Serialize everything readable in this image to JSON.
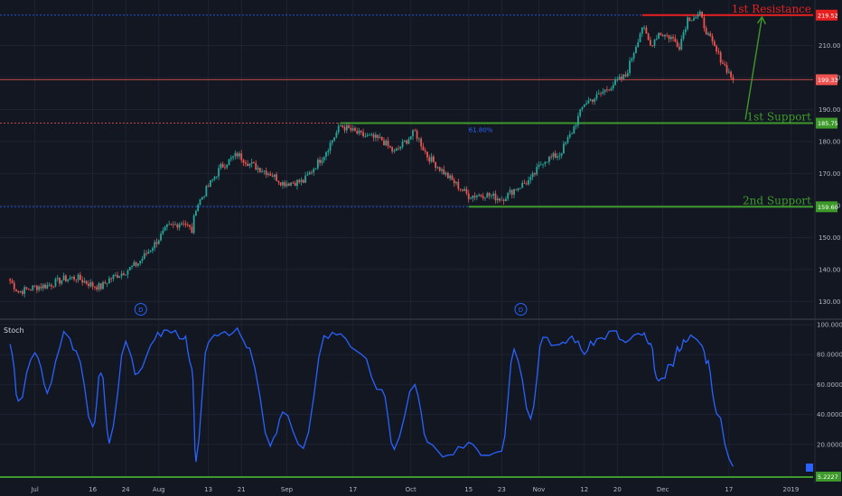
{
  "colors": {
    "background": "#131722",
    "grid": "#1f2330",
    "up": "#26a69a",
    "down": "#ef5350",
    "resistance": "#e82020",
    "support": "#3d9a2a",
    "arrow": "#3d9a2a",
    "stoch": "#2962ff",
    "price_tag": "#ef5350",
    "fib": "#2962ff"
  },
  "annotations": {
    "resistance_label": "1st Resistance",
    "support1_label": "1st Support",
    "support2_label": "2nd Support",
    "fib_label": "61.80%",
    "event_marker": "D"
  },
  "indicator": {
    "name": "Stoch"
  },
  "chart_data": [
    {
      "type": "candlestick",
      "series": [
        {
          "name": "",
          "values": [
            {
              "date": "2018-06-26",
              "close": 136.5
            },
            {
              "date": "2018-06-28",
              "close": 133.0
            },
            {
              "date": "2018-07-02",
              "close": 134.5
            },
            {
              "date": "2018-07-05",
              "close": 135.0
            },
            {
              "date": "2018-07-09",
              "close": 137.0
            },
            {
              "date": "2018-07-12",
              "close": 137.5
            },
            {
              "date": "2018-07-16",
              "close": 135.0
            },
            {
              "date": "2018-07-18",
              "close": 134.5
            },
            {
              "date": "2018-07-20",
              "close": 137.0
            },
            {
              "date": "2018-07-24",
              "close": 139.5
            },
            {
              "date": "2018-07-27",
              "close": 142.0
            },
            {
              "date": "2018-07-31",
              "close": 148.0
            },
            {
              "date": "2018-08-03",
              "close": 153.0
            },
            {
              "date": "2018-08-07",
              "close": 155.0
            },
            {
              "date": "2018-08-09",
              "close": 152.0
            },
            {
              "date": "2018-08-10",
              "close": 159.5
            },
            {
              "date": "2018-08-13",
              "close": 166.0
            },
            {
              "date": "2018-08-16",
              "close": 172.0
            },
            {
              "date": "2018-08-20",
              "close": 176.0
            },
            {
              "date": "2018-08-23",
              "close": 173.0
            },
            {
              "date": "2018-08-28",
              "close": 170.0
            },
            {
              "date": "2018-08-31",
              "close": 167.0
            },
            {
              "date": "2018-09-05",
              "close": 167.5
            },
            {
              "date": "2018-09-10",
              "close": 176.0
            },
            {
              "date": "2018-09-14",
              "close": 185.0
            },
            {
              "date": "2018-09-19",
              "close": 182.0
            },
            {
              "date": "2018-09-24",
              "close": 180.5
            },
            {
              "date": "2018-09-27",
              "close": 176.5
            },
            {
              "date": "2018-10-02",
              "close": 183.0
            },
            {
              "date": "2018-10-05",
              "close": 175.5
            },
            {
              "date": "2018-10-10",
              "close": 169.0
            },
            {
              "date": "2018-10-15",
              "close": 163.0
            },
            {
              "date": "2018-10-19",
              "close": 163.5
            },
            {
              "date": "2018-10-23",
              "close": 162.0
            },
            {
              "date": "2018-10-26",
              "close": 165.0
            },
            {
              "date": "2018-10-30",
              "close": 168.0
            },
            {
              "date": "2018-11-02",
              "close": 174.0
            },
            {
              "date": "2018-11-06",
              "close": 176.0
            },
            {
              "date": "2018-11-09",
              "close": 183.0
            },
            {
              "date": "2018-11-12",
              "close": 192.0
            },
            {
              "date": "2018-11-15",
              "close": 194.0
            },
            {
              "date": "2018-11-19",
              "close": 198.0
            },
            {
              "date": "2018-11-22",
              "close": 200.5
            },
            {
              "date": "2018-11-26",
              "close": 216.0
            },
            {
              "date": "2018-11-28",
              "close": 210.0
            },
            {
              "date": "2018-11-30",
              "close": 214.0
            },
            {
              "date": "2018-12-03",
              "close": 212.5
            },
            {
              "date": "2018-12-05",
              "close": 210.0
            },
            {
              "date": "2018-12-07",
              "close": 218.5
            },
            {
              "date": "2018-12-10",
              "close": 219.5
            },
            {
              "date": "2018-12-12",
              "close": 213.0
            },
            {
              "date": "2018-12-14",
              "close": 208.0
            },
            {
              "date": "2018-12-18",
              "close": 199.33
            }
          ]
        }
      ],
      "y_ticks": [
        "130.00",
        "140.00",
        "150.00",
        "160.00",
        "170.00",
        "180.00",
        "190.00",
        "200.00",
        "210.00"
      ],
      "x_ticks": [
        "Jul",
        "16",
        "24",
        "Aug",
        "13",
        "21",
        "Sep",
        "17",
        "Oct",
        "15",
        "23",
        "Nov",
        "12",
        "20",
        "Dec",
        "17",
        "2019"
      ],
      "price_tags": [
        {
          "label": "219.52",
          "value": 219.52
        },
        {
          "label": "199.33",
          "value": 199.33
        },
        {
          "label": "185.75",
          "value": 185.75
        },
        {
          "label": "159.60",
          "value": 159.6
        }
      ],
      "levels": [
        {
          "name": "1st Resistance",
          "value": 219.52
        },
        {
          "name": "1st Support",
          "value": 185.75
        },
        {
          "name": "2nd Support",
          "value": 159.6
        }
      ],
      "ylim": [
        125,
        222
      ]
    },
    {
      "type": "line",
      "series": [
        {
          "name": "Stoch",
          "values": [
            {
              "date": "2018-06-26",
              "value": 88
            },
            {
              "date": "2018-06-28",
              "value": 48
            },
            {
              "date": "2018-07-02",
              "value": 82
            },
            {
              "date": "2018-07-05",
              "value": 55
            },
            {
              "date": "2018-07-09",
              "value": 93
            },
            {
              "date": "2018-07-12",
              "value": 84
            },
            {
              "date": "2018-07-16",
              "value": 30
            },
            {
              "date": "2018-07-18",
              "value": 70
            },
            {
              "date": "2018-07-20",
              "value": 22
            },
            {
              "date": "2018-07-24",
              "value": 90
            },
            {
              "date": "2018-07-27",
              "value": 65
            },
            {
              "date": "2018-07-31",
              "value": 92
            },
            {
              "date": "2018-08-03",
              "value": 96
            },
            {
              "date": "2018-08-07",
              "value": 93
            },
            {
              "date": "2018-08-09",
              "value": 70
            },
            {
              "date": "2018-08-10",
              "value": 10
            },
            {
              "date": "2018-08-13",
              "value": 90
            },
            {
              "date": "2018-08-16",
              "value": 96
            },
            {
              "date": "2018-08-20",
              "value": 95
            },
            {
              "date": "2018-08-23",
              "value": 82
            },
            {
              "date": "2018-08-28",
              "value": 18
            },
            {
              "date": "2018-08-31",
              "value": 42
            },
            {
              "date": "2018-09-05",
              "value": 15
            },
            {
              "date": "2018-09-10",
              "value": 92
            },
            {
              "date": "2018-09-14",
              "value": 95
            },
            {
              "date": "2018-09-19",
              "value": 78
            },
            {
              "date": "2018-09-24",
              "value": 55
            },
            {
              "date": "2018-09-27",
              "value": 18
            },
            {
              "date": "2018-10-02",
              "value": 60
            },
            {
              "date": "2018-10-05",
              "value": 20
            },
            {
              "date": "2018-10-10",
              "value": 10
            },
            {
              "date": "2018-10-15",
              "value": 22
            },
            {
              "date": "2018-10-19",
              "value": 14
            },
            {
              "date": "2018-10-23",
              "value": 18
            },
            {
              "date": "2018-10-26",
              "value": 85
            },
            {
              "date": "2018-10-30",
              "value": 40
            },
            {
              "date": "2018-11-02",
              "value": 93
            },
            {
              "date": "2018-11-06",
              "value": 85
            },
            {
              "date": "2018-11-09",
              "value": 92
            },
            {
              "date": "2018-11-12",
              "value": 82
            },
            {
              "date": "2018-11-15",
              "value": 90
            },
            {
              "date": "2018-11-19",
              "value": 95
            },
            {
              "date": "2018-11-22",
              "value": 88
            },
            {
              "date": "2018-11-26",
              "value": 94
            },
            {
              "date": "2018-11-28",
              "value": 85
            },
            {
              "date": "2018-11-30",
              "value": 60
            },
            {
              "date": "2018-12-03",
              "value": 72
            },
            {
              "date": "2018-12-05",
              "value": 85
            },
            {
              "date": "2018-12-07",
              "value": 92
            },
            {
              "date": "2018-12-10",
              "value": 88
            },
            {
              "date": "2018-12-12",
              "value": 75
            },
            {
              "date": "2018-12-14",
              "value": 40
            },
            {
              "date": "2018-12-18",
              "value": 5.2227
            }
          ]
        }
      ],
      "y_ticks": [
        "100.0000",
        "80.0000",
        "60.0000",
        "40.0000",
        "20.0000"
      ],
      "last_value_label": "5.2227",
      "ylim": [
        0,
        100
      ]
    }
  ]
}
